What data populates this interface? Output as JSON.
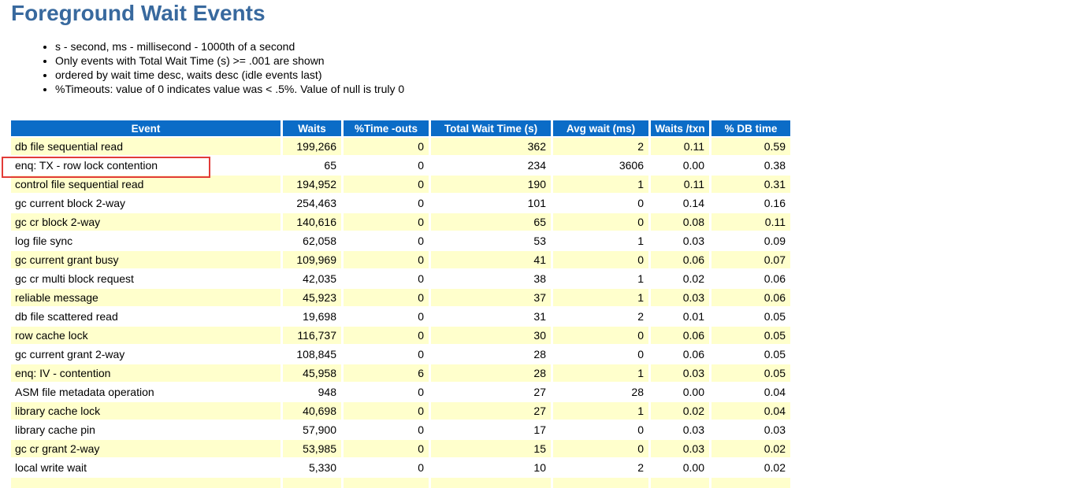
{
  "page": {
    "title": "Foreground Wait Events",
    "notes": [
      "s - second, ms - millisecond - 1000th of a second",
      "Only events with Total Wait Time (s) >= .001 are shown",
      "ordered by wait time desc, waits desc (idle events last)",
      "%Timeouts: value of 0 indicates value was < .5%. Value of null is truly 0"
    ]
  },
  "colors": {
    "title_text": "#38699e",
    "header_bg": "#0b6cc7",
    "header_text": "#ffffff",
    "row_alt_bg": "#ffffcc",
    "row_bg": "#ffffff",
    "annotation_border": "#e23b38"
  },
  "table": {
    "columns": [
      "Event",
      "Waits",
      "%Time -outs",
      "Total Wait Time (s)",
      "Avg wait (ms)",
      "Waits /txn",
      "% DB time"
    ],
    "rows": [
      [
        "db file sequential read",
        "199,266",
        "0",
        "362",
        "2",
        "0.11",
        "0.59"
      ],
      [
        "enq: TX - row lock contention",
        "65",
        "0",
        "234",
        "3606",
        "0.00",
        "0.38"
      ],
      [
        "control file sequential read",
        "194,952",
        "0",
        "190",
        "1",
        "0.11",
        "0.31"
      ],
      [
        "gc current block 2-way",
        "254,463",
        "0",
        "101",
        "0",
        "0.14",
        "0.16"
      ],
      [
        "gc cr block 2-way",
        "140,616",
        "0",
        "65",
        "0",
        "0.08",
        "0.11"
      ],
      [
        "log file sync",
        "62,058",
        "0",
        "53",
        "1",
        "0.03",
        "0.09"
      ],
      [
        "gc current grant busy",
        "109,969",
        "0",
        "41",
        "0",
        "0.06",
        "0.07"
      ],
      [
        "gc cr multi block request",
        "42,035",
        "0",
        "38",
        "1",
        "0.02",
        "0.06"
      ],
      [
        "reliable message",
        "45,923",
        "0",
        "37",
        "1",
        "0.03",
        "0.06"
      ],
      [
        "db file scattered read",
        "19,698",
        "0",
        "31",
        "2",
        "0.01",
        "0.05"
      ],
      [
        "row cache lock",
        "116,737",
        "0",
        "30",
        "0",
        "0.06",
        "0.05"
      ],
      [
        "gc current grant 2-way",
        "108,845",
        "0",
        "28",
        "0",
        "0.06",
        "0.05"
      ],
      [
        "enq: IV - contention",
        "45,958",
        "6",
        "28",
        "1",
        "0.03",
        "0.05"
      ],
      [
        "ASM file metadata operation",
        "948",
        "0",
        "27",
        "28",
        "0.00",
        "0.04"
      ],
      [
        "library cache lock",
        "40,698",
        "0",
        "27",
        "1",
        "0.02",
        "0.04"
      ],
      [
        "library cache pin",
        "57,900",
        "0",
        "17",
        "0",
        "0.03",
        "0.03"
      ],
      [
        "gc cr grant 2-way",
        "53,985",
        "0",
        "15",
        "0",
        "0.03",
        "0.02"
      ],
      [
        "local write wait",
        "5,330",
        "0",
        "10",
        "2",
        "0.00",
        "0.02"
      ]
    ],
    "highlighted_row_index": 1,
    "has_partial_next_row": true
  }
}
